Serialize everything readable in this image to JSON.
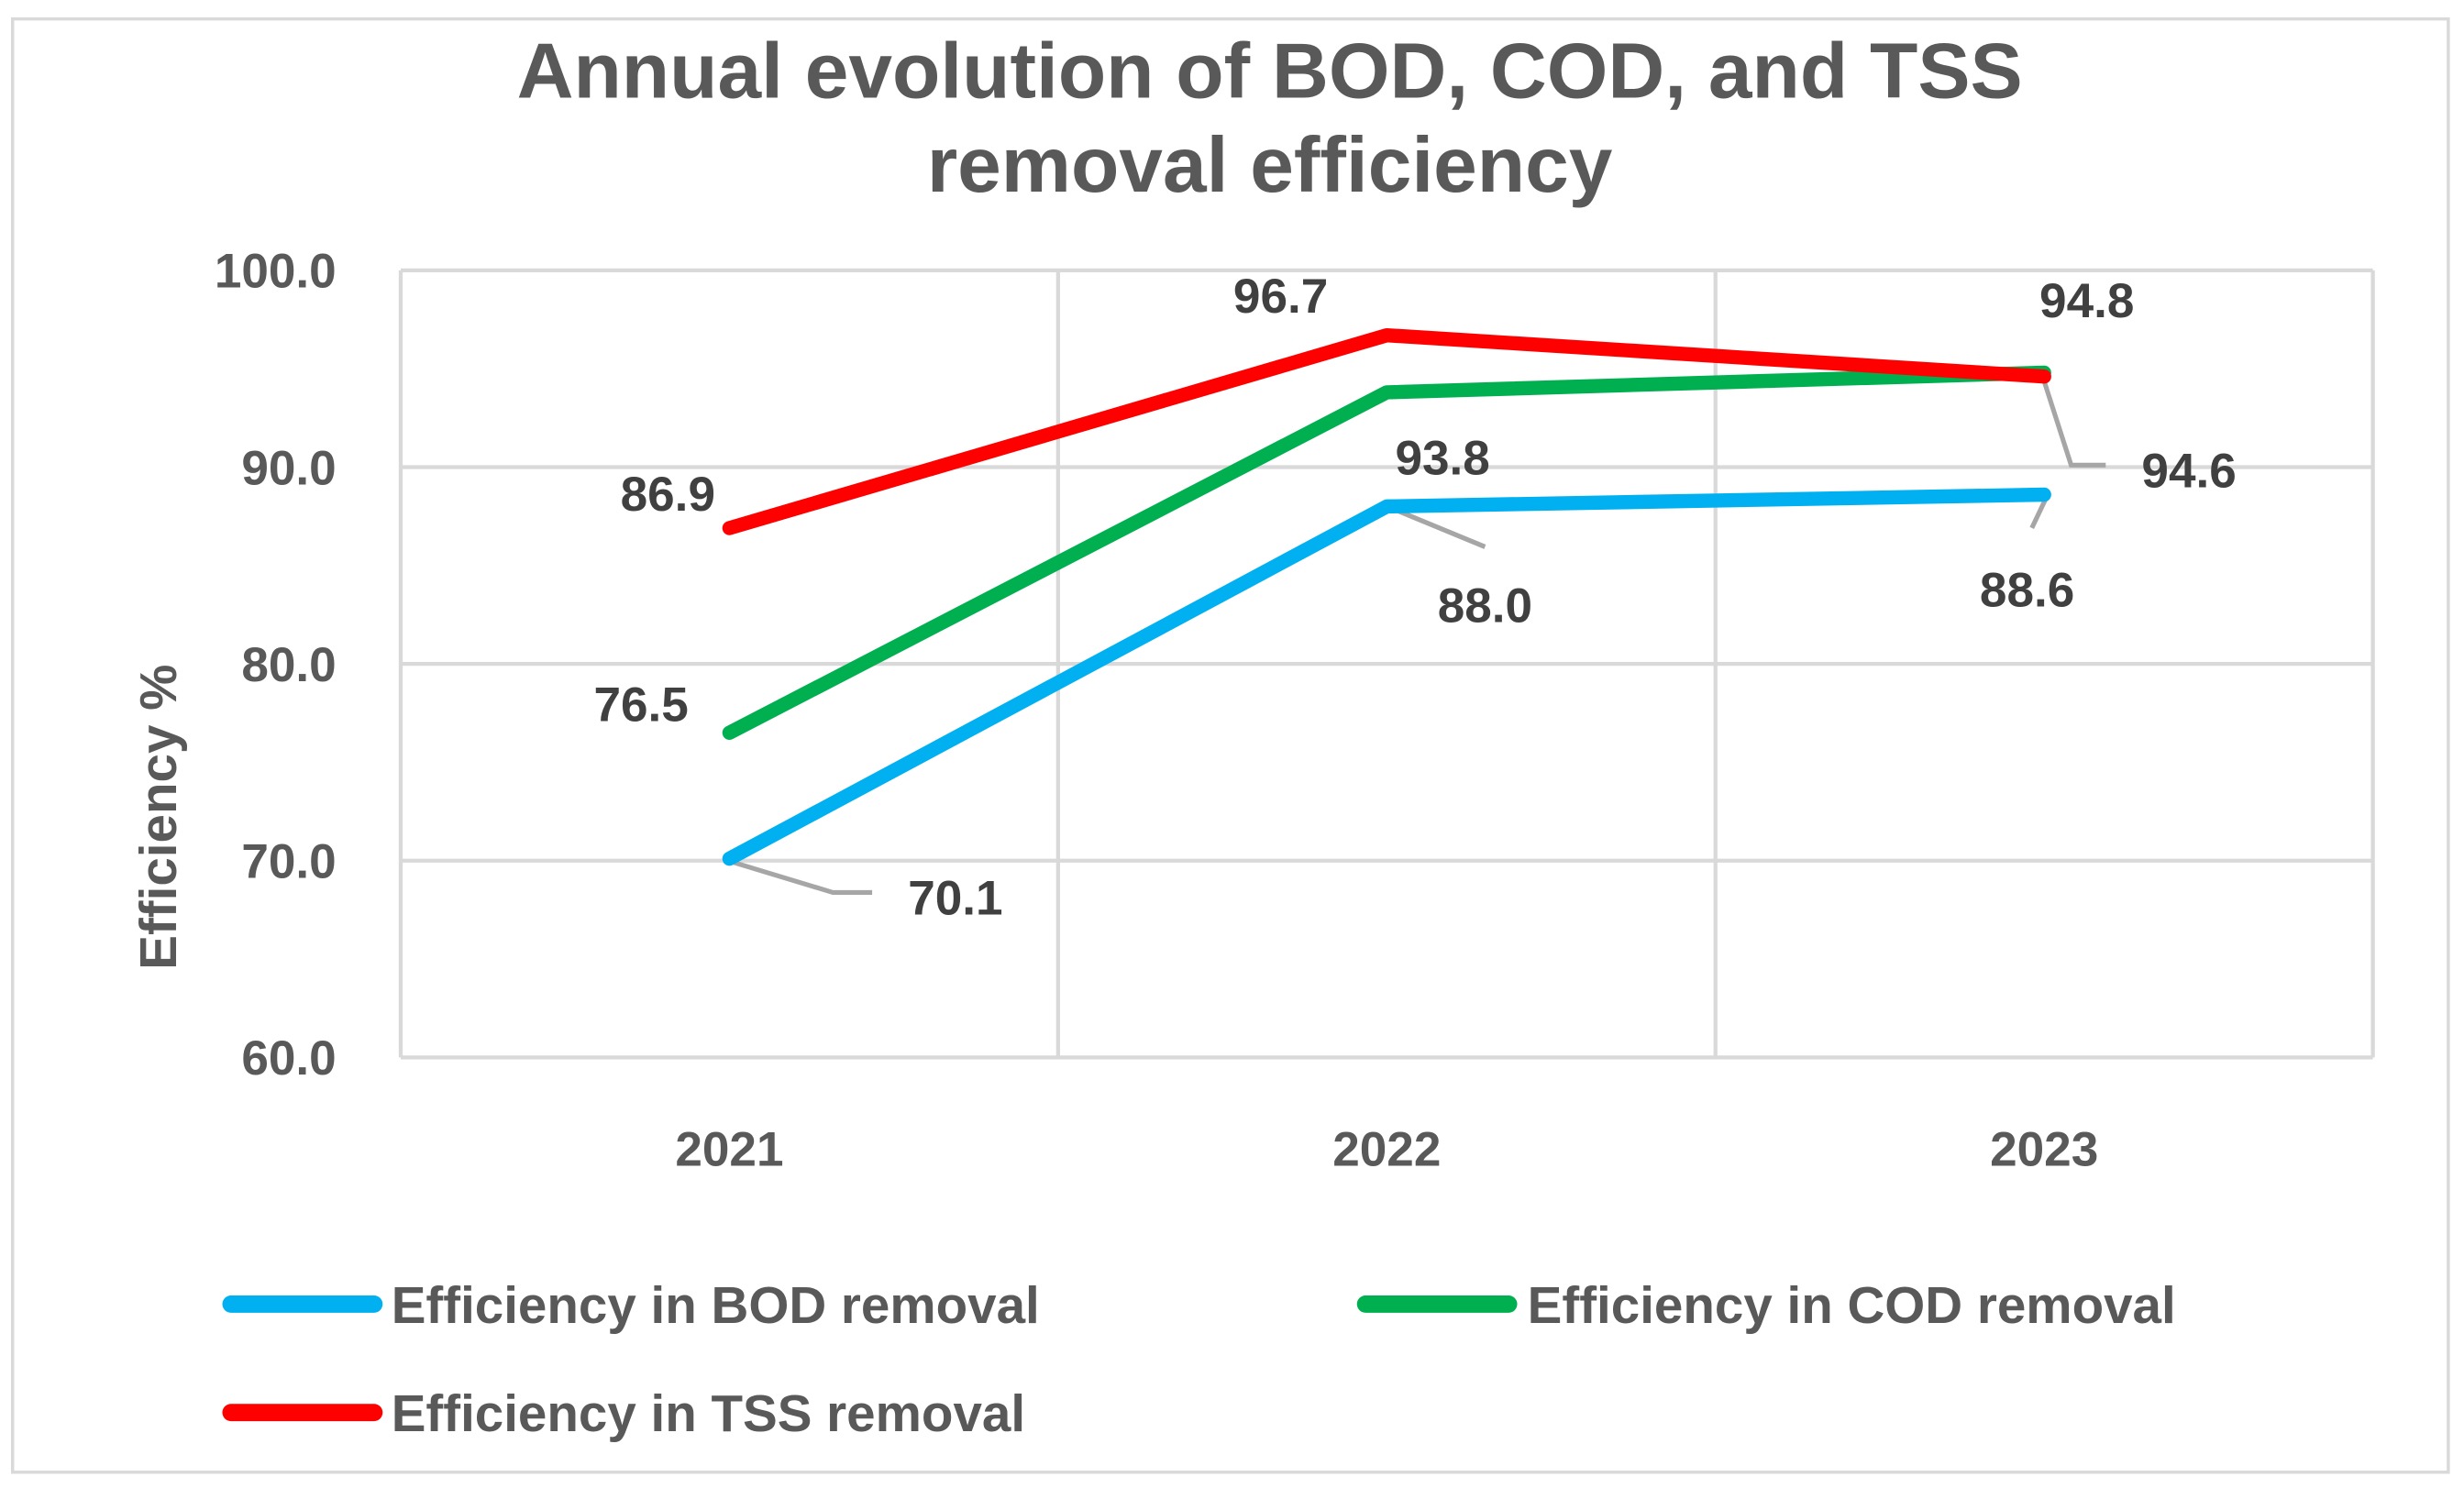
{
  "chart_data": {
    "type": "line",
    "title": [
      "Annual evolution of BOD, COD, and TSS",
      "removal efficiency"
    ],
    "xlabel": "",
    "ylabel": "Efficiency %",
    "categories": [
      "2021",
      "2022",
      "2023"
    ],
    "ylim": [
      60,
      100
    ],
    "yticks": [
      "60.0",
      "70.0",
      "80.0",
      "90.0",
      "100.0"
    ],
    "ytick_values": [
      60,
      70,
      80,
      90,
      100
    ],
    "grid": true,
    "legend_position": "bottom",
    "series": [
      {
        "name": "Efficiency in BOD removal",
        "color": "#00B0F0",
        "values": [
          70.1,
          88.0,
          88.6
        ],
        "labels": [
          "70.1",
          "88.0",
          "88.6"
        ]
      },
      {
        "name": "Efficiency in COD removal",
        "color": "#00B050",
        "values": [
          76.5,
          93.8,
          94.8
        ],
        "labels": [
          "76.5",
          "93.8",
          "94.8"
        ]
      },
      {
        "name": "Efficiency in TSS removal",
        "color": "#FF0000",
        "values": [
          86.9,
          96.7,
          94.6
        ],
        "labels": [
          "86.9",
          "96.7",
          "94.6"
        ]
      }
    ]
  }
}
